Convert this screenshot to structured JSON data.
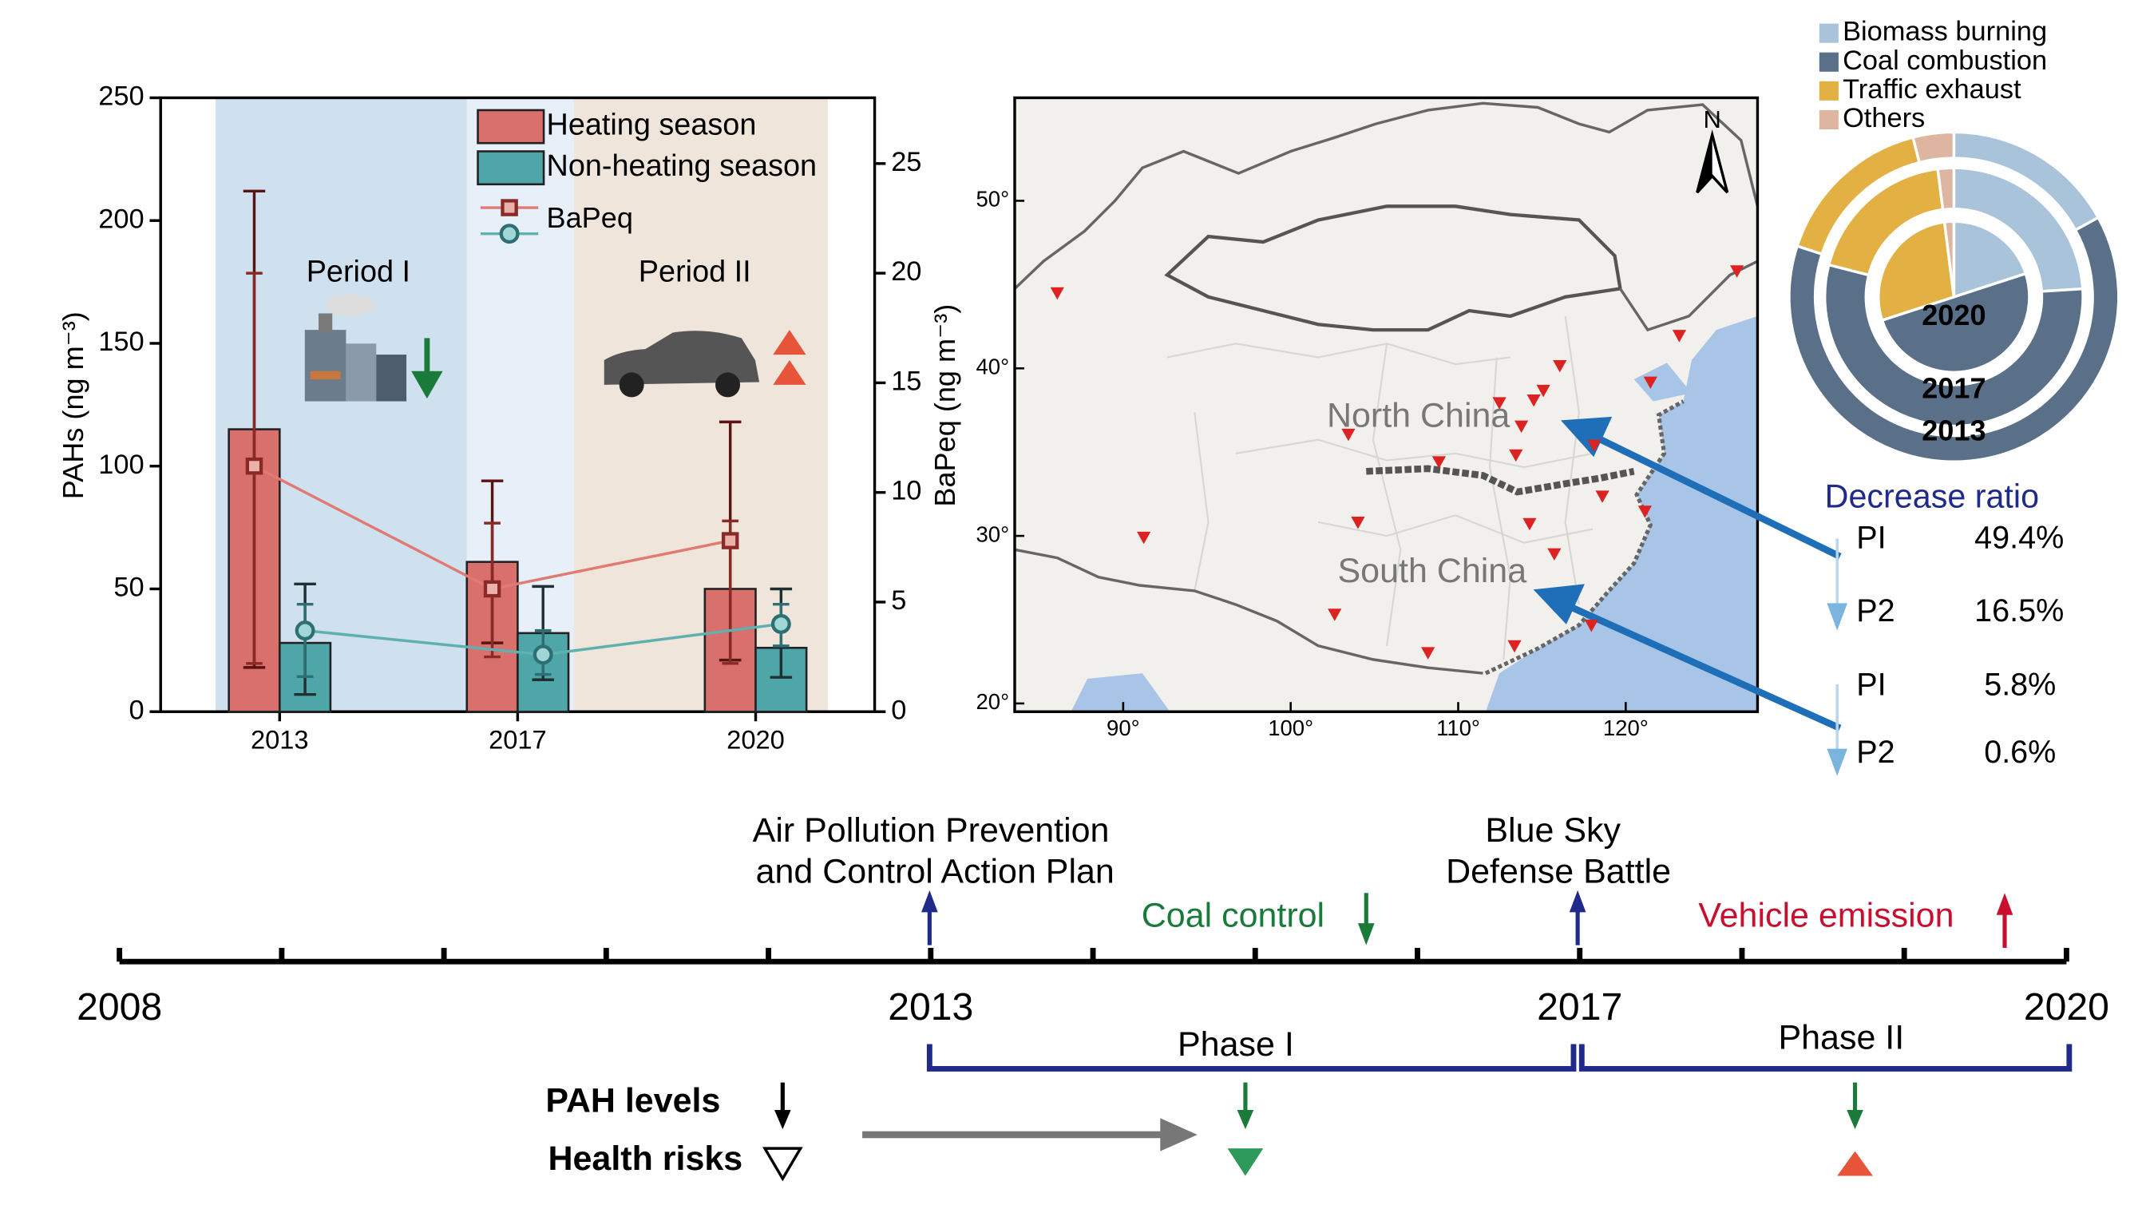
{
  "chart_data": [
    {
      "type": "bar",
      "categories": [
        "2013",
        "2017",
        "2020"
      ],
      "series": [
        {
          "name": "Heating season",
          "color": "#d9706b",
          "values": [
            115,
            61,
            50
          ],
          "errors": [
            [
              97,
              97
            ],
            [
              33,
              33
            ],
            [
              29,
              68
            ]
          ]
        },
        {
          "name": "Non-heating season",
          "color": "#4fa6a8",
          "values": [
            28,
            32,
            26
          ],
          "errors": [
            [
              21,
              24
            ],
            [
              19,
              19
            ],
            [
              12,
              24
            ]
          ]
        },
        {
          "name": "BaPeq",
          "type": "line",
          "axis": "y2",
          "color": "#e07a72",
          "values": [
            11.2,
            5.6,
            7.8
          ],
          "errors": [
            [
              9,
              8.8
            ],
            [
              3.1,
              3
            ],
            [
              5.6,
              0.9
            ]
          ]
        },
        {
          "type": "line",
          "axis": "y2",
          "color": "#5fb0b0",
          "values": [
            3.7,
            2.6,
            4
          ],
          "errors": [
            [
              2.1,
              1.2
            ],
            [
              0.9,
              1.1
            ],
            [
              1,
              0.9
            ]
          ]
        }
      ],
      "ylim": [
        0,
        250
      ],
      "yticks": [
        0,
        50,
        100,
        150,
        200,
        250
      ],
      "y2lim": [
        0,
        28
      ],
      "y2ticks": [
        0,
        5,
        10,
        15,
        20,
        25
      ],
      "ylabel": "PAHs (ng m⁻³)",
      "y2label": "BaPeq (ng m⁻³)",
      "annotations": [
        "Period I",
        "Period II"
      ]
    },
    {
      "type": "pie",
      "categories": [
        "Biomass burning",
        "Coal combustion",
        "Traffic exhaust",
        "Others"
      ],
      "colors": [
        "#a9c3da",
        "#5a7088",
        "#e3b143",
        "#ddb5a0"
      ],
      "rings": [
        {
          "name": "2020",
          "values": [
            20,
            50,
            28,
            2
          ]
        },
        {
          "name": "2017",
          "values": [
            24,
            55,
            19,
            2
          ]
        },
        {
          "name": "2013",
          "values": [
            17,
            63,
            16,
            4
          ]
        }
      ]
    }
  ],
  "map": {
    "labels": [
      "North China",
      "South China"
    ],
    "north": "N",
    "yticks": [
      {
        "value": 50,
        "label": "50°"
      },
      {
        "value": 40,
        "label": "40°"
      },
      {
        "value": 30,
        "label": "30°"
      },
      {
        "value": 20,
        "label": "20°"
      }
    ],
    "xticks": [
      {
        "value": 90,
        "label": "90°"
      },
      {
        "value": 100,
        "label": "100°"
      },
      {
        "value": 110,
        "label": "110°"
      },
      {
        "value": 120,
        "label": "120°"
      }
    ]
  },
  "decrease_ratio": {
    "title": "Decrease ratio",
    "rows": [
      [
        "PI",
        "49.4%"
      ],
      [
        "P2",
        "16.5%"
      ],
      [
        "PI",
        "5.8%"
      ],
      [
        "P2",
        "0.6%"
      ]
    ]
  },
  "timeline": {
    "xlim": [
      2008,
      2020
    ],
    "years": [
      2008,
      2013,
      2017,
      2020
    ],
    "policies": [
      [
        "Air Pollution Prevention",
        "and Control Action Plan"
      ],
      [
        "Blue Sky",
        "Defense Battle"
      ]
    ],
    "controls": [
      "Coal control",
      "Vehicle emission"
    ],
    "phases": [
      "Phase I",
      "Phase II"
    ],
    "outcomes": [
      "PAH levels",
      "Health risks"
    ]
  }
}
